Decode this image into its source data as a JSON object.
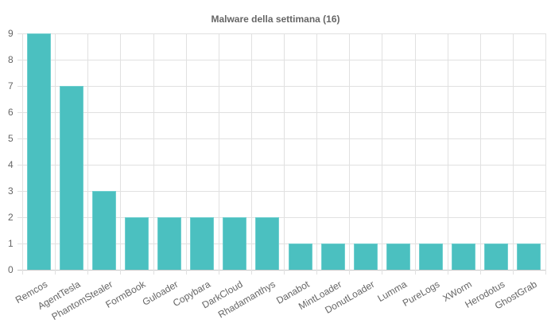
{
  "chart_data": {
    "type": "bar",
    "title": "Malware della settimana (16)",
    "xlabel": "",
    "ylabel": "",
    "ylim": [
      0,
      9
    ],
    "yticks": [
      0,
      1,
      2,
      3,
      4,
      5,
      6,
      7,
      8,
      9
    ],
    "grid": true,
    "legend": "none",
    "bar_color": "#4bc0c0",
    "categories": [
      "Remcos",
      "AgentTesla",
      "PhantomStealer",
      "FormBook",
      "Guloader",
      "Copybara",
      "DarkCloud",
      "Rhadamanthys",
      "Danabot",
      "MintLoader",
      "DonutLoader",
      "Lumma",
      "PureLogs",
      "XWorm",
      "Herodotus",
      "GhostGrab"
    ],
    "values": [
      9,
      7,
      3,
      2,
      2,
      2,
      2,
      2,
      1,
      1,
      1,
      1,
      1,
      1,
      1,
      1
    ]
  }
}
